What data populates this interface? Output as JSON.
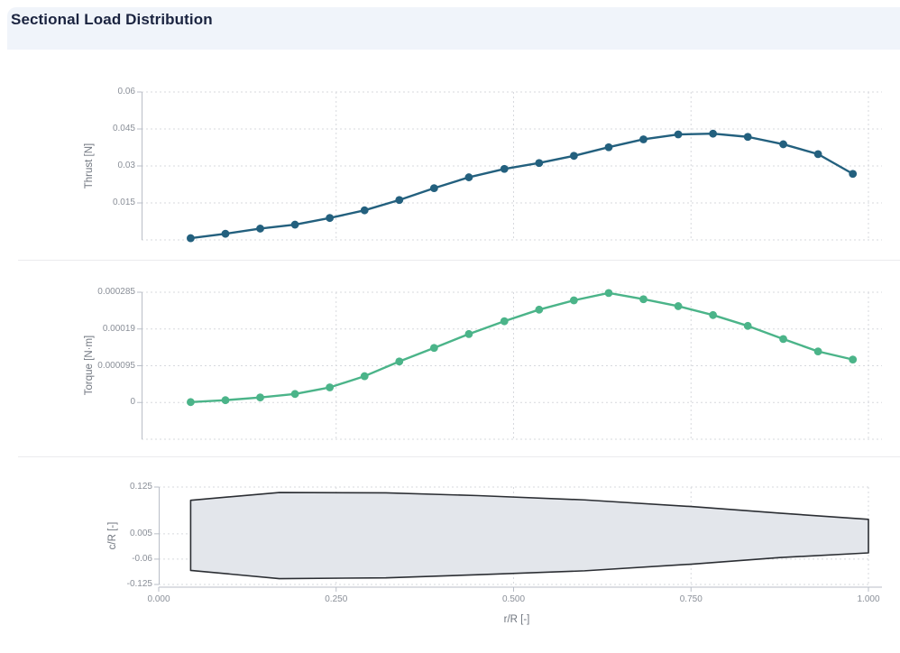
{
  "header": {
    "title": "Sectional Load Distribution"
  },
  "colors": {
    "header_bg": "#f0f4fa",
    "title_text": "#1b2440",
    "divider": "#ebebee",
    "grid": "#d7d9de",
    "spine": "#b9bec7",
    "tick_text": "#8a8f98",
    "axis_title_text": "#70767f",
    "thrust_line": "#23607e",
    "torque_line": "#4bb489",
    "blade_fill": "#e3e6eb",
    "blade_stroke": "#2b2e33"
  },
  "chart_data": [
    {
      "type": "line",
      "id": "thrust",
      "ylabel": "Thrust [N]",
      "xlabel": "",
      "color": "#23607e",
      "grid": true,
      "legend": false,
      "xlim": [
        0,
        1
      ],
      "ylim": [
        0,
        0.06
      ],
      "x": [
        0.045,
        0.094,
        0.143,
        0.192,
        0.241,
        0.29,
        0.339,
        0.388,
        0.437,
        0.487,
        0.536,
        0.585,
        0.634,
        0.683,
        0.732,
        0.781,
        0.83,
        0.88,
        0.929,
        0.978
      ],
      "y": [
        0.0007,
        0.0025,
        0.0046,
        0.0062,
        0.0089,
        0.012,
        0.0162,
        0.021,
        0.0254,
        0.0288,
        0.0312,
        0.0341,
        0.0376,
        0.0408,
        0.0428,
        0.0431,
        0.0418,
        0.0388,
        0.0348,
        0.0268
      ],
      "yticks": [
        {
          "value": 0.06,
          "label": "0.06"
        },
        {
          "value": 0.045,
          "label": "0.045"
        },
        {
          "value": 0.03,
          "label": "0.03"
        },
        {
          "value": 0.015,
          "label": "0.015"
        }
      ],
      "ygrid_extra": [
        0
      ],
      "xgrid": [
        0.25,
        0.5,
        0.75,
        1.0
      ]
    },
    {
      "type": "line",
      "id": "torque",
      "ylabel": "Torque [N·m]",
      "xlabel": "",
      "color": "#4bb489",
      "grid": true,
      "legend": false,
      "xlim": [
        0,
        1
      ],
      "ylim": [
        -9.5e-05,
        0.000285
      ],
      "x": [
        0.045,
        0.094,
        0.143,
        0.192,
        0.241,
        0.29,
        0.339,
        0.388,
        0.437,
        0.487,
        0.536,
        0.585,
        0.634,
        0.683,
        0.732,
        0.781,
        0.83,
        0.88,
        0.929,
        0.978
      ],
      "y": [
        1e-06,
        6e-06,
        1.3e-05,
        2.2e-05,
        3.9e-05,
        6.8e-05,
        0.000106,
        0.000141,
        0.000177,
        0.00021,
        0.00024,
        0.000264,
        0.000283,
        0.000267,
        0.000249,
        0.000226,
        0.000198,
        0.000164,
        0.000132,
        0.000111
      ],
      "yticks": [
        {
          "value": 0.000285,
          "label": "0.000285"
        },
        {
          "value": 0.00019,
          "label": "0.00019"
        },
        {
          "value": 9.5e-05,
          "label": "0.000095"
        },
        {
          "value": 0,
          "label": "0"
        }
      ],
      "ygrid_extra": [
        -9.5e-05
      ],
      "xgrid": [
        0.25,
        0.5,
        0.75,
        1.0
      ]
    },
    {
      "type": "area",
      "id": "blade",
      "ylabel": "c/R [-]",
      "xlabel": "r/R [-]",
      "fill": "#e3e6eb",
      "stroke": "#2b2e33",
      "grid": true,
      "legend": false,
      "xlim": [
        0,
        1
      ],
      "ylim": [
        -0.125,
        0.125
      ],
      "outline": [
        [
          0.045,
          0.091
        ],
        [
          0.17,
          0.111
        ],
        [
          0.32,
          0.11
        ],
        [
          0.45,
          0.103
        ],
        [
          0.6,
          0.092
        ],
        [
          0.75,
          0.075
        ],
        [
          0.875,
          0.058
        ],
        [
          1.0,
          0.042
        ],
        [
          1.0,
          -0.044
        ],
        [
          0.875,
          -0.056
        ],
        [
          0.75,
          -0.073
        ],
        [
          0.6,
          -0.09
        ],
        [
          0.45,
          -0.1
        ],
        [
          0.32,
          -0.108
        ],
        [
          0.17,
          -0.11
        ],
        [
          0.045,
          -0.089
        ]
      ],
      "yticks": [
        {
          "value": 0.125,
          "label": "0.125"
        },
        {
          "value": 0.005,
          "label": "0.005"
        },
        {
          "value": -0.06,
          "label": "-0.06"
        },
        {
          "value": -0.125,
          "label": "-0.125"
        }
      ],
      "ygrid_extra": [],
      "xgrid": [
        0.25,
        0.5,
        0.75,
        1.0
      ],
      "xticks": [
        {
          "value": 0.0,
          "label": "0.000"
        },
        {
          "value": 0.25,
          "label": "0.250"
        },
        {
          "value": 0.5,
          "label": "0.500"
        },
        {
          "value": 0.75,
          "label": "0.750"
        },
        {
          "value": 1.0,
          "label": "1.000"
        }
      ]
    }
  ]
}
